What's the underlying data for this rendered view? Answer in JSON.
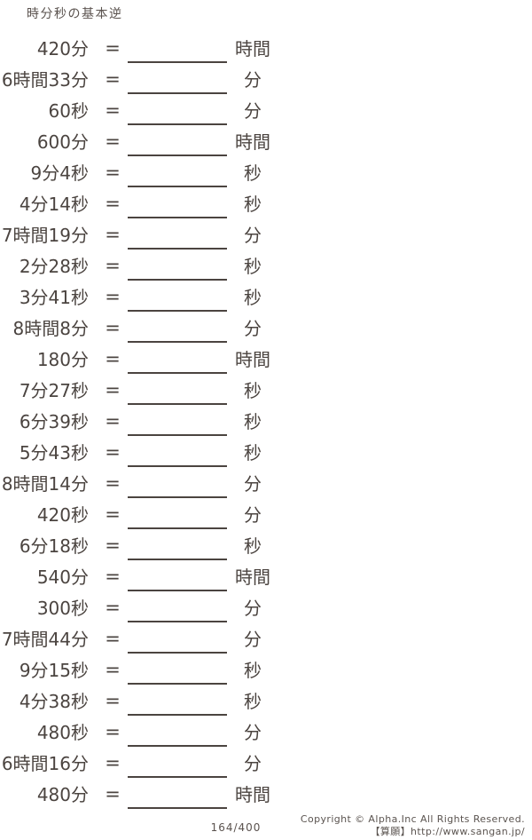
{
  "page": {
    "title": "時分秒の基本逆",
    "equals_sign": "=",
    "page_number": "164/400",
    "footer": {
      "copyright": "Copyright © Alpha.Inc All Rights Reserved.",
      "site": "【算願】http://www.sangan.jp/"
    },
    "colors": {
      "ink": "#4b4440",
      "soft": "#5a524e",
      "background": "#ffffff"
    }
  },
  "problems": [
    {
      "left": "420分",
      "unit": "時間"
    },
    {
      "left": "6時間33分",
      "unit": "分"
    },
    {
      "left": "60秒",
      "unit": "分"
    },
    {
      "left": "600分",
      "unit": "時間"
    },
    {
      "left": "9分4秒",
      "unit": "秒"
    },
    {
      "left": "4分14秒",
      "unit": "秒"
    },
    {
      "left": "7時間19分",
      "unit": "分"
    },
    {
      "left": "2分28秒",
      "unit": "秒"
    },
    {
      "left": "3分41秒",
      "unit": "秒"
    },
    {
      "left": "8時間8分",
      "unit": "分"
    },
    {
      "left": "180分",
      "unit": "時間"
    },
    {
      "left": "7分27秒",
      "unit": "秒"
    },
    {
      "left": "6分39秒",
      "unit": "秒"
    },
    {
      "left": "5分43秒",
      "unit": "秒"
    },
    {
      "left": "8時間14分",
      "unit": "分"
    },
    {
      "left": "420秒",
      "unit": "分"
    },
    {
      "left": "6分18秒",
      "unit": "秒"
    },
    {
      "left": "540分",
      "unit": "時間"
    },
    {
      "left": "300秒",
      "unit": "分"
    },
    {
      "left": "7時間44分",
      "unit": "分"
    },
    {
      "left": "9分15秒",
      "unit": "秒"
    },
    {
      "left": "4分38秒",
      "unit": "秒"
    },
    {
      "left": "480秒",
      "unit": "分"
    },
    {
      "left": "6時間16分",
      "unit": "分"
    },
    {
      "left": "480分",
      "unit": "時間"
    }
  ]
}
